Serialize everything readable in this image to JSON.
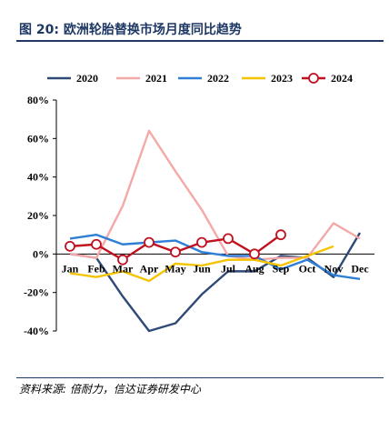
{
  "header": {
    "title": "图 20:  欧洲轮胎替换市场月度同比趋势"
  },
  "footer": {
    "source": "资料来源:  倍耐力，信达证券研发中心"
  },
  "colors": {
    "title": "#1f3864",
    "s2020": "#2f4a77",
    "s2021": "#f4a9a8",
    "s2022": "#2f7fd6",
    "s2023": "#f5c400",
    "s2024": "#c0111f"
  },
  "chart_data": {
    "type": "line",
    "title": "",
    "xlabel": "",
    "ylabel": "",
    "ylim": [
      -40,
      80
    ],
    "yticks": [
      80,
      60,
      40,
      20,
      0,
      -20,
      -40
    ],
    "ytick_labels": [
      "80%",
      "60%",
      "40%",
      "20%",
      "0%",
      "-20%",
      "-40%"
    ],
    "y_unit": "%",
    "grid": false,
    "legend_position": "top",
    "categories": [
      "Jan",
      "Feb",
      "Mar",
      "Apr",
      "May",
      "Jun",
      "Jul",
      "Aug",
      "Sep",
      "Oct",
      "Nov",
      "Dec"
    ],
    "series": [
      {
        "name": "2020",
        "color": "#2f4a77",
        "marker": false,
        "values": [
          0,
          -2,
          -22,
          -40,
          -36,
          -21,
          -9,
          -9,
          -1,
          -2,
          -12,
          11
        ]
      },
      {
        "name": "2021",
        "color": "#f4a9a8",
        "marker": false,
        "values": [
          0,
          -2,
          25,
          64,
          43,
          23,
          -1,
          -3,
          -2,
          -2,
          16,
          8
        ]
      },
      {
        "name": "2022",
        "color": "#2f7fd6",
        "marker": false,
        "values": [
          8,
          10,
          5,
          6,
          7,
          1,
          -1,
          -1,
          -8,
          -3,
          -11,
          -13
        ]
      },
      {
        "name": "2023",
        "color": "#f5c400",
        "marker": false,
        "values": [
          -10,
          -12,
          -9,
          -14,
          -5,
          -6,
          -3,
          -3,
          -6,
          -1,
          4,
          null
        ]
      },
      {
        "name": "2024",
        "color": "#c0111f",
        "marker": true,
        "values": [
          4,
          5,
          -3,
          6,
          1,
          6,
          8,
          0,
          10,
          null,
          null,
          null
        ]
      }
    ]
  }
}
